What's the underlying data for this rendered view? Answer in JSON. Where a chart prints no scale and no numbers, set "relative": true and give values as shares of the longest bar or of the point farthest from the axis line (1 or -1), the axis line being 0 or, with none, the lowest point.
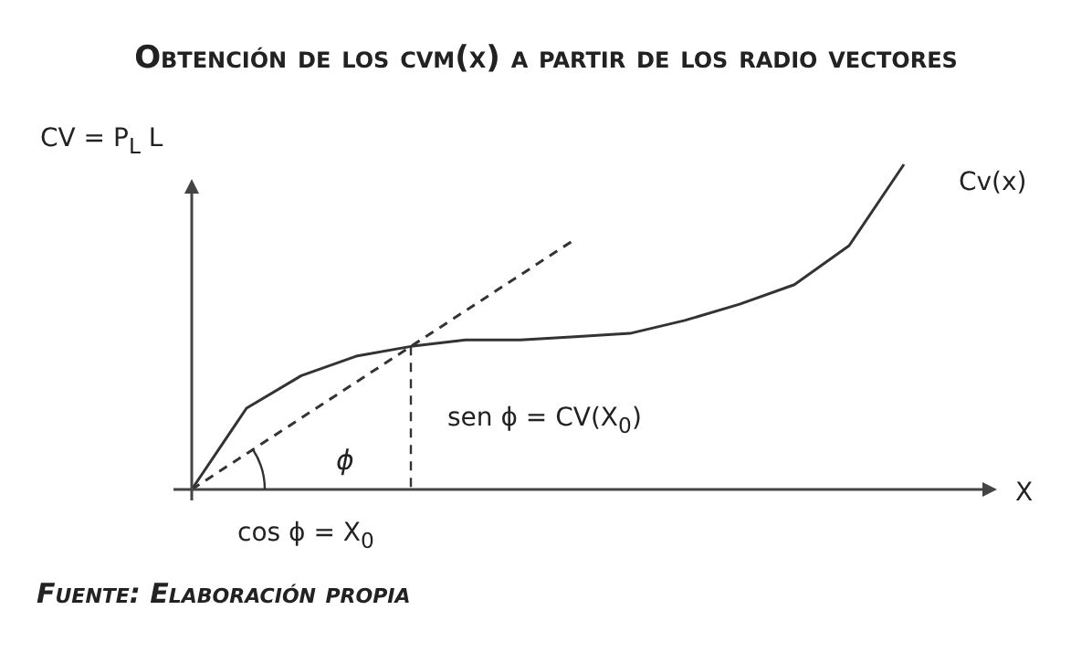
{
  "chart_data": {
    "type": "line",
    "title": "Obtención de los cvm(x) a partir de los radio vectores",
    "ylabel": "CV = P$_{L}$ L",
    "xlabel": "X",
    "relative": true,
    "legend": false,
    "marker": "none",
    "categories": [
      null,
      null,
      null,
      null,
      null,
      null,
      null,
      null,
      null,
      null,
      null,
      null,
      null,
      null
    ],
    "series": [
      {
        "name": "Cv(x)",
        "color": "#333333",
        "line_style": "solid",
        "values": [
          0,
          0.25,
          0.35,
          0.41,
          0.44,
          0.46,
          0.46,
          0.47,
          0.48,
          0.52,
          0.57,
          0.63,
          0.75,
          1
        ]
      },
      {
        "color": "#333333",
        "line_style": "dashed",
        "values": [
          0,
          null,
          null,
          null,
          0.44,
          null,
          null,
          0.77,
          null,
          null,
          null,
          null,
          null,
          null
        ]
      }
    ],
    "annotations": [
      "sen ϕ = CV(X$_{0}$)",
      "ϕ",
      "cos ϕ = X$_{0}$",
      "Fuente: Elaboración propia"
    ]
  }
}
